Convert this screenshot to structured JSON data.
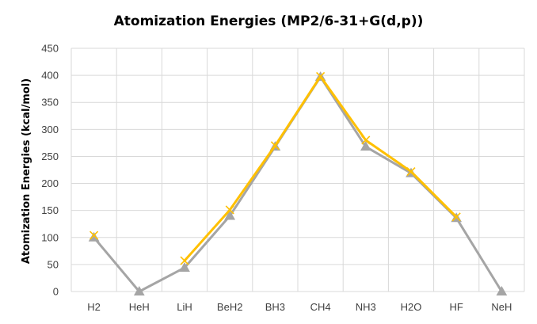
{
  "chart_data": {
    "type": "line",
    "title": "Atomization Energies  (MP2/6-31+G(d,p))",
    "xlabel": "",
    "ylabel": "Atomization Energies (kcal/mol)",
    "categories": [
      "H2",
      "HeH",
      "LiH",
      "BeH2",
      "BH3",
      "CH4",
      "NH3",
      "H2O",
      "HF",
      "NeH"
    ],
    "ylim": [
      0,
      450
    ],
    "yticks": [
      0,
      50,
      100,
      150,
      200,
      250,
      300,
      350,
      400,
      450
    ],
    "grid": true,
    "legend": "none",
    "series": [
      {
        "values": [
          100,
          0,
          44,
          140,
          268,
          397,
          268,
          219,
          136,
          0
        ],
        "color": "#a5a5a5",
        "marker": "triangle"
      },
      {
        "values": [
          104,
          null,
          57,
          151,
          270,
          398,
          280,
          222,
          138,
          null
        ],
        "color": "#ffc000",
        "marker": "x"
      }
    ]
  }
}
